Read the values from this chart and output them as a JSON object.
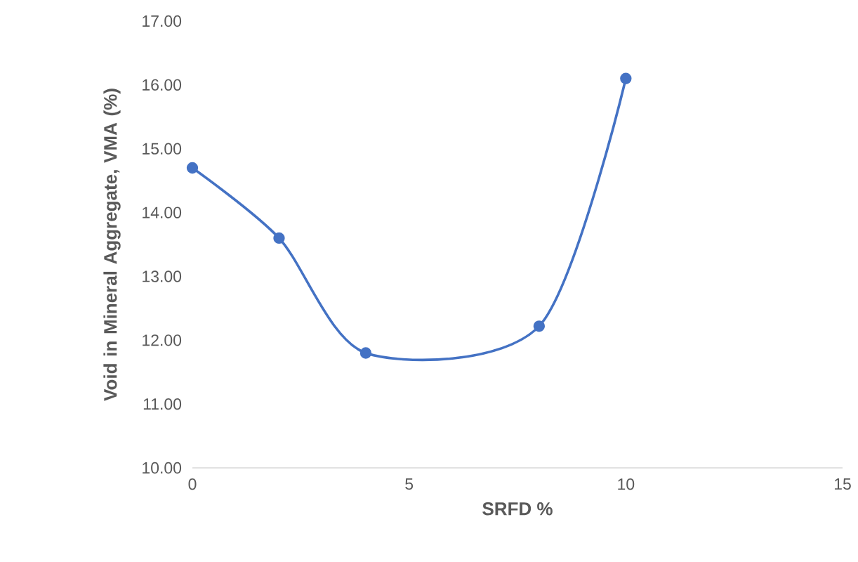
{
  "chart_data": {
    "type": "line",
    "xlabel": "SRFD %",
    "ylabel": "Void in Mineral Aggregate, VMA (%)",
    "x": [
      0,
      2,
      4,
      8,
      10
    ],
    "series": [
      {
        "color": "#4472c4",
        "values": [
          14.7,
          13.6,
          11.8,
          12.22,
          16.1
        ]
      }
    ],
    "xlim": [
      0,
      15
    ],
    "xticks": [
      0,
      5,
      10,
      15
    ],
    "ylim": [
      10,
      17
    ],
    "yticks": [
      {
        "value": 10,
        "label": "10.00"
      },
      {
        "value": 11,
        "label": "11.00"
      },
      {
        "value": 12,
        "label": "12.00"
      },
      {
        "value": 13,
        "label": "13.00"
      },
      {
        "value": 14,
        "label": "14.00"
      },
      {
        "value": 15,
        "label": "15.00"
      },
      {
        "value": 16,
        "label": "16.00"
      },
      {
        "value": 17,
        "label": "17.00"
      }
    ],
    "marker": "circle",
    "line_style": "solid"
  }
}
